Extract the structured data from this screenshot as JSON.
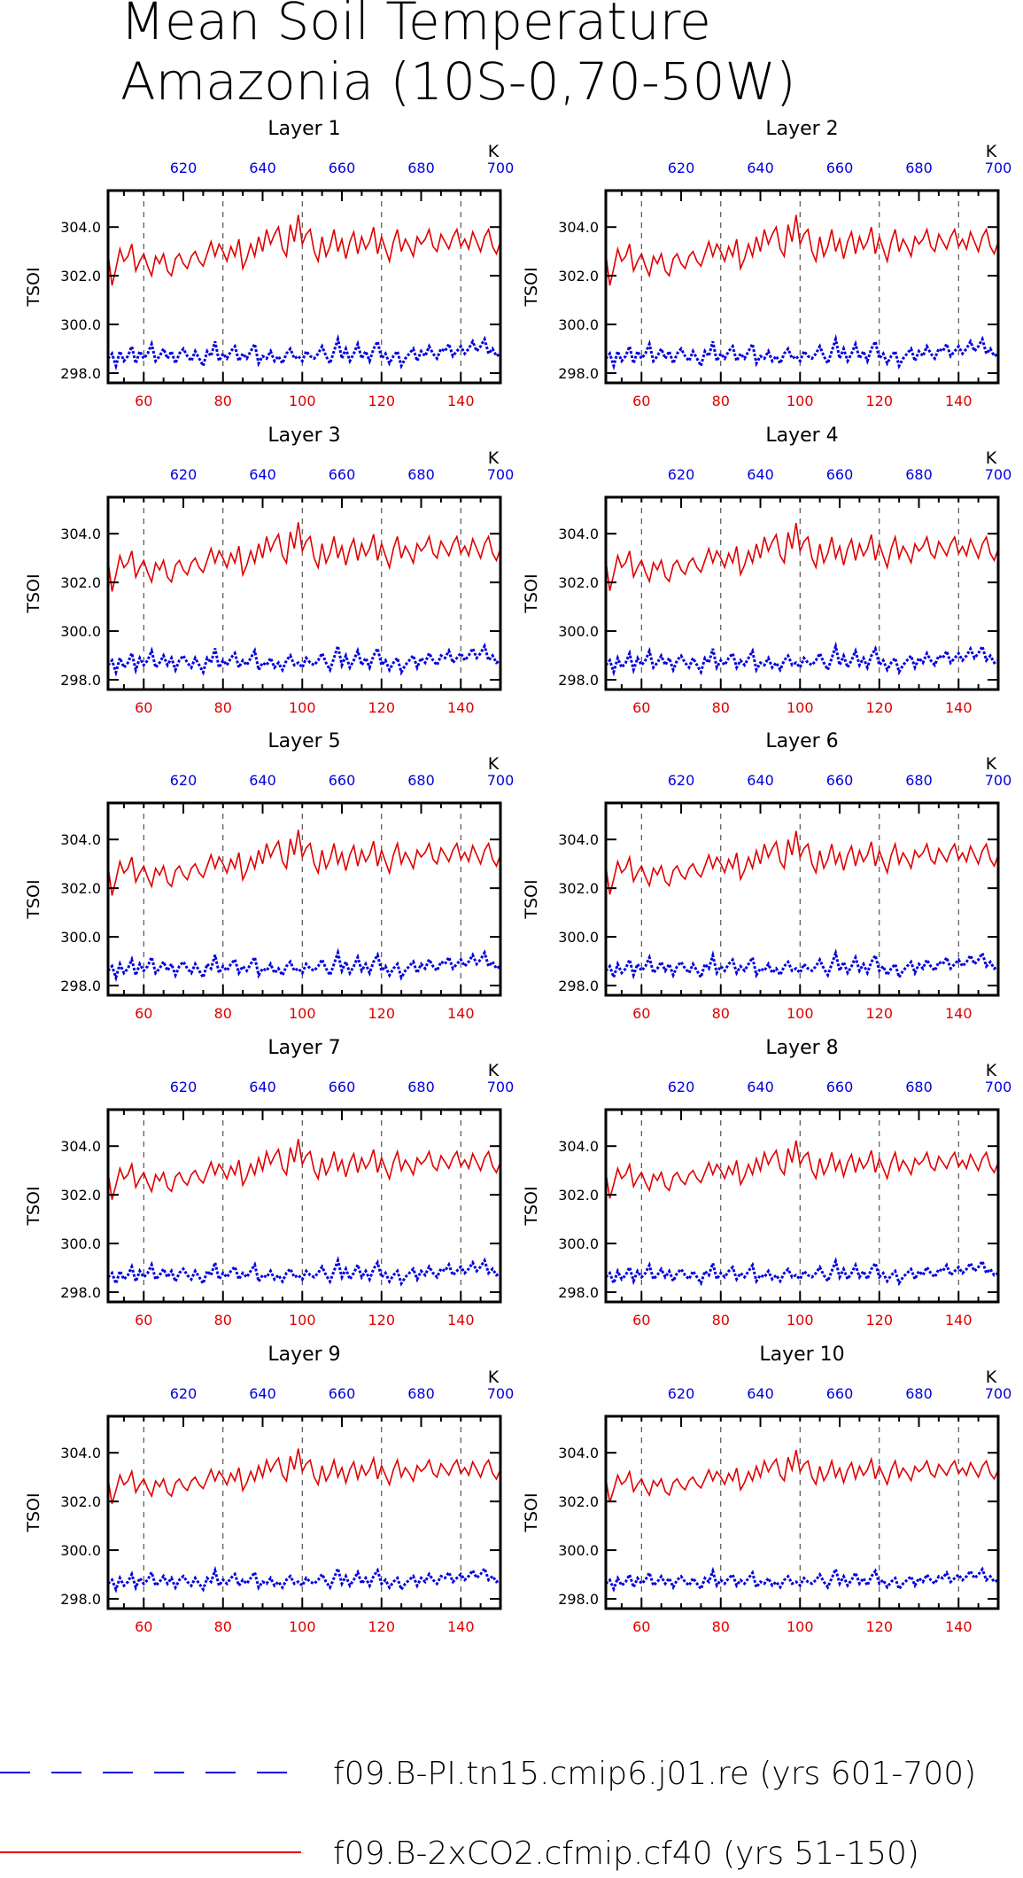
{
  "title_line1": "Mean Soil Temperature",
  "title_line2": "Amazonia (10S-0,70-50W)",
  "colors": {
    "control": "#0000e0",
    "experiment": "#e00000"
  },
  "legend": [
    {
      "label": "f09.B-PI.tn15.cmip6.j01.re (yrs 601-700)",
      "color": "#0000e0",
      "style": "dashed"
    },
    {
      "label": "f09.B-2xCO2.cfmip.cf40 (yrs 51-150)",
      "color": "#e00000",
      "style": "solid"
    }
  ],
  "chart_data": {
    "type": "line",
    "ylabel": "TSOI",
    "ylim": [
      297.6,
      305.5
    ],
    "yticks": [
      "298.0",
      "300.0",
      "302.0",
      "304.0"
    ],
    "ytick_values": [
      298.0,
      300.0,
      302.0,
      304.0
    ],
    "x_bottom": {
      "range": [
        51,
        150
      ],
      "ticks": [
        60,
        80,
        100,
        120,
        140
      ],
      "color": "#e00000"
    },
    "x_top": {
      "range": [
        601,
        700
      ],
      "ticks": [
        620,
        640,
        660,
        680,
        700
      ],
      "unit_label": "K",
      "color": "#0000e0"
    },
    "grid": "vertical dashed at bottom-axis ticks",
    "experiment_base": [
      302.9,
      301.6,
      302.3,
      303.1,
      302.6,
      302.8,
      303.3,
      302.2,
      302.6,
      302.9,
      302.4,
      302.0,
      302.8,
      302.5,
      302.9,
      302.2,
      302.0,
      302.7,
      302.9,
      302.5,
      302.3,
      302.8,
      303.0,
      302.6,
      302.4,
      302.9,
      303.4,
      302.8,
      303.3,
      303.0,
      302.6,
      303.2,
      302.8,
      303.5,
      302.3,
      302.7,
      303.3,
      302.8,
      303.6,
      303.0,
      303.9,
      303.3,
      303.7,
      304.0,
      303.1,
      302.8,
      304.1,
      303.4,
      304.5,
      303.3,
      303.7,
      303.9,
      303.0,
      302.6,
      303.6,
      302.8,
      303.2,
      303.9,
      303.0,
      303.5,
      302.7,
      303.4,
      303.8,
      302.9,
      303.6,
      303.1,
      303.4,
      304.0,
      302.9,
      303.6,
      303.1,
      302.6,
      303.4,
      303.9,
      303.0,
      303.5,
      303.2,
      302.8,
      303.6,
      303.3,
      303.5,
      303.9,
      303.2,
      303.0,
      303.7,
      303.4,
      303.1,
      303.6,
      303.9,
      303.2,
      303.5,
      303.1,
      303.8,
      303.4,
      303.0,
      303.6,
      303.9,
      303.2,
      302.9,
      303.4
    ],
    "control_base": [
      298.6,
      298.8,
      298.3,
      298.9,
      298.5,
      298.7,
      299.1,
      298.4,
      298.9,
      298.6,
      298.8,
      299.2,
      298.5,
      298.7,
      299.0,
      298.6,
      298.9,
      298.4,
      298.8,
      299.0,
      298.7,
      298.5,
      298.9,
      298.6,
      298.3,
      298.9,
      298.7,
      299.3,
      298.5,
      298.8,
      298.6,
      298.9,
      299.1,
      298.5,
      298.8,
      298.6,
      298.9,
      299.2,
      298.4,
      298.7,
      298.6,
      298.9,
      298.5,
      298.7,
      298.4,
      298.8,
      299.0,
      298.6,
      298.7,
      298.5,
      298.9,
      298.7,
      298.6,
      298.8,
      299.1,
      298.7,
      298.4,
      298.9,
      299.4,
      298.6,
      299.0,
      298.5,
      298.8,
      299.2,
      298.6,
      298.9,
      298.5,
      299.0,
      299.3,
      298.6,
      298.8,
      298.4,
      298.7,
      298.9,
      298.3,
      298.6,
      298.8,
      299.0,
      298.5,
      298.9,
      298.7,
      299.1,
      298.8,
      298.6,
      299.0,
      298.9,
      299.2,
      298.7,
      298.9,
      299.1,
      298.8,
      299.0,
      299.3,
      298.9,
      299.1,
      299.4,
      298.8,
      299.0,
      298.7,
      298.8
    ],
    "panels": [
      {
        "title": "Layer 1",
        "amp": 1.0
      },
      {
        "title": "Layer 2",
        "amp": 1.0
      },
      {
        "title": "Layer 3",
        "amp": 0.98
      },
      {
        "title": "Layer 4",
        "amp": 0.96
      },
      {
        "title": "Layer 5",
        "amp": 0.93
      },
      {
        "title": "Layer 6",
        "amp": 0.9
      },
      {
        "title": "Layer 7",
        "amp": 0.86
      },
      {
        "title": "Layer 8",
        "amp": 0.82
      },
      {
        "title": "Layer 9",
        "amp": 0.78
      },
      {
        "title": "Layer 10",
        "amp": 0.74
      }
    ]
  }
}
